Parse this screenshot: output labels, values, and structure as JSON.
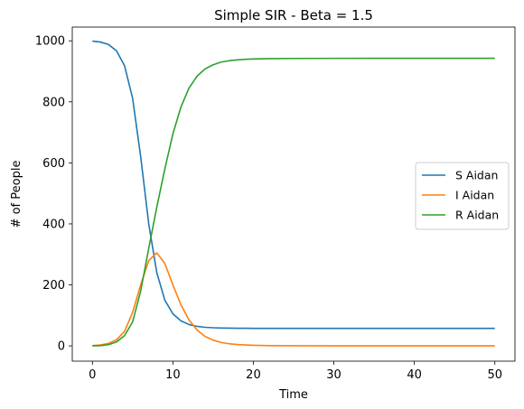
{
  "chart_data": {
    "type": "line",
    "title": "Simple SIR - Beta = 1.5",
    "xlabel": "Time",
    "ylabel": "# of People",
    "xlim": [
      -2.5,
      52.5
    ],
    "ylim": [
      -50,
      1045
    ],
    "xticks": [
      0,
      10,
      20,
      30,
      40,
      50
    ],
    "yticks": [
      0,
      200,
      400,
      600,
      800,
      1000
    ],
    "grid": false,
    "legend_position": "center-right",
    "x": [
      0,
      1,
      2,
      3,
      4,
      5,
      6,
      7,
      8,
      9,
      10,
      11,
      12,
      13,
      14,
      15,
      16,
      17,
      18,
      19,
      20,
      22,
      25,
      30,
      35,
      40,
      45,
      50
    ],
    "series": [
      {
        "name": "S Aidan",
        "color": "#1f77b4",
        "values": [
          999,
          996,
          988,
          967,
          918,
          811,
          620,
          400,
          240,
          150,
          105,
          82,
          70,
          64,
          61,
          59.5,
          58.7,
          58.2,
          57.9,
          57.7,
          57.6,
          57.5,
          57.4,
          57.4,
          57.4,
          57.4,
          57.4,
          57.4
        ]
      },
      {
        "name": "I Aidan",
        "color": "#ff7f0e",
        "values": [
          1,
          3,
          8,
          20,
          48,
          110,
          200,
          280,
          305,
          270,
          200,
          135,
          85,
          52,
          31,
          19,
          11,
          7,
          4.5,
          3,
          2,
          1,
          0.4,
          0.1,
          0,
          0,
          0,
          0
        ]
      },
      {
        "name": "R Aidan",
        "color": "#2ca02c",
        "values": [
          0,
          1,
          4,
          13,
          34,
          79,
          180,
          320,
          455,
          580,
          695,
          783,
          845,
          884,
          908,
          921.5,
          930.3,
          934.8,
          937.6,
          939.3,
          940.4,
          941.5,
          942.2,
          942.5,
          942.6,
          942.6,
          942.6,
          942.6
        ]
      }
    ]
  }
}
